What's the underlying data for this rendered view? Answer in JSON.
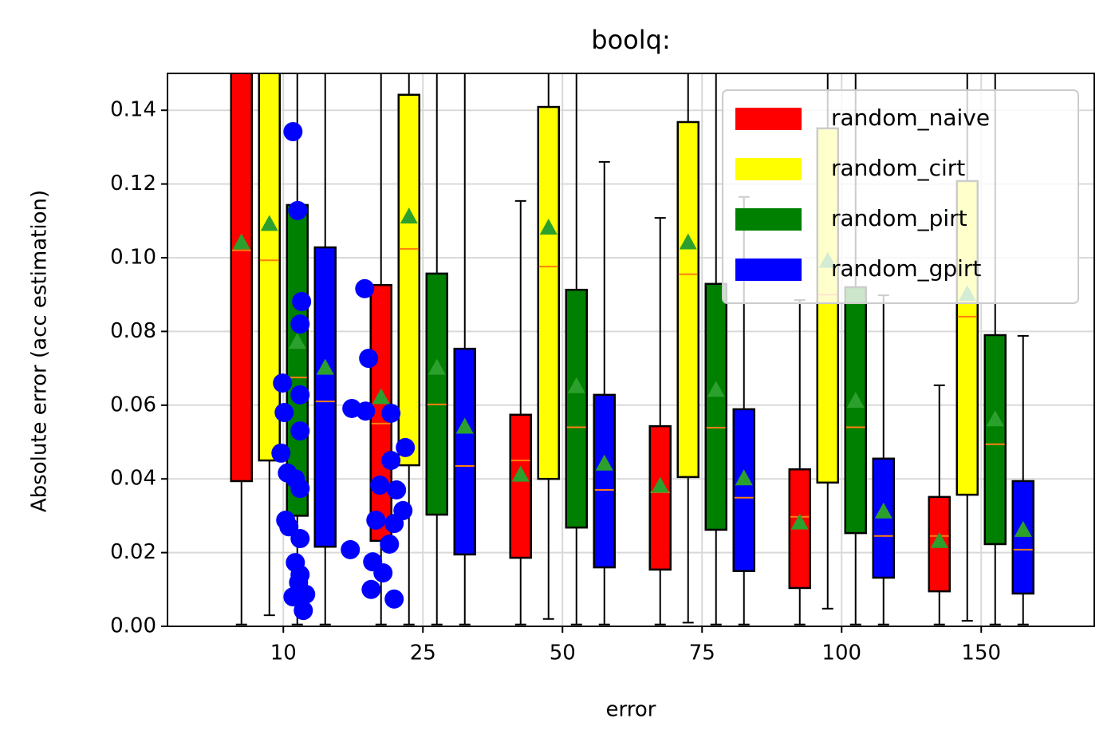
{
  "chart_data": {
    "type": "box",
    "title": "boolq:",
    "xlabel": "error",
    "ylabel": "Absolute error (acc estimation)",
    "xlim": [
      -0.83,
      5.81
    ],
    "xticks": [
      {
        "value": 0,
        "label": "10"
      },
      {
        "value": 1,
        "label": "25"
      },
      {
        "value": 2,
        "label": "50"
      },
      {
        "value": 3,
        "label": "75"
      },
      {
        "value": 4,
        "label": "100"
      },
      {
        "value": 5,
        "label": "150"
      }
    ],
    "ylim": [
      0,
      0.15
    ],
    "yticks": [
      {
        "value": 0,
        "label": "0.00"
      },
      {
        "value": 0.02,
        "label": "0.02"
      },
      {
        "value": 0.04,
        "label": "0.04"
      },
      {
        "value": 0.06,
        "label": "0.06"
      },
      {
        "value": 0.08,
        "label": "0.08"
      },
      {
        "value": 0.1,
        "label": "0.10"
      },
      {
        "value": 0.12,
        "label": "0.12"
      },
      {
        "value": 0.14,
        "label": "0.14"
      }
    ],
    "grid": true,
    "legend": "upper right",
    "median_color": "#ff7f0e",
    "mean_color": "#2ca02c",
    "series": [
      {
        "name": "random_naive",
        "color": "#ff0000",
        "whislo": [
          0.0005,
          0.0005,
          0.0005,
          0.0005,
          0.0005,
          0.0005
        ],
        "q1": [
          0.0394,
          0.0232,
          0.0186,
          0.0154,
          0.0104,
          0.0095
        ],
        "med": [
          0.102,
          0.055,
          0.045,
          0.0364,
          0.0297,
          0.0245
        ],
        "q3": [
          0.16,
          0.0926,
          0.0574,
          0.0543,
          0.0426,
          0.0351
        ],
        "whishi": [
          0.25,
          0.16,
          0.1154,
          0.1108,
          0.0885,
          0.0654
        ],
        "mean": [
          0.104,
          0.062,
          0.041,
          0.038,
          0.028,
          0.023
        ]
      },
      {
        "name": "random_cirt",
        "color": "#ffff00",
        "whislo": [
          0.003,
          0.0005,
          0.002,
          0.001,
          0.0048,
          0.0015
        ],
        "q1": [
          0.045,
          0.0437,
          0.04,
          0.0405,
          0.039,
          0.0357
        ],
        "med": [
          0.0993,
          0.1024,
          0.0976,
          0.0955,
          0.09,
          0.084
        ],
        "q3": [
          0.16,
          0.1442,
          0.1409,
          0.1368,
          0.1351,
          0.1208
        ],
        "whishi": [
          0.25,
          0.16,
          0.16,
          0.16,
          0.16,
          0.16
        ],
        "mean": [
          0.109,
          0.111,
          0.108,
          0.104,
          0.099,
          0.09
        ]
      },
      {
        "name": "random_pirt",
        "color": "#008000",
        "whislo": [
          0.0005,
          0.0005,
          0.0005,
          0.0005,
          0.0005,
          0.0005
        ],
        "q1": [
          0.03,
          0.0303,
          0.0268,
          0.0262,
          0.0253,
          0.0223
        ],
        "med": [
          0.0675,
          0.0602,
          0.054,
          0.0539,
          0.054,
          0.0494
        ],
        "q3": [
          0.1143,
          0.0957,
          0.0913,
          0.0929,
          0.092,
          0.079
        ],
        "whishi": [
          0.16,
          0.16,
          0.16,
          0.16,
          0.16,
          0.16
        ],
        "mean": [
          0.077,
          0.07,
          0.065,
          0.064,
          0.061,
          0.056
        ]
      },
      {
        "name": "random_gpirt",
        "color": "#0000ff",
        "whislo": [
          0.0005,
          0.0005,
          0.0005,
          0.0005,
          0.0005,
          0.0005
        ],
        "q1": [
          0.0216,
          0.0195,
          0.016,
          0.015,
          0.0132,
          0.0089
        ],
        "med": [
          0.061,
          0.0435,
          0.037,
          0.0349,
          0.0245,
          0.0208
        ],
        "q3": [
          0.1028,
          0.0753,
          0.0628,
          0.0589,
          0.0455,
          0.0394
        ],
        "whishi": [
          0.16,
          0.16,
          0.126,
          0.1165,
          0.0898,
          0.0788
        ],
        "mean": [
          0.07,
          0.054,
          0.044,
          0.04,
          0.031,
          0.026
        ]
      }
    ],
    "points": {
      "color": "#0000ff",
      "x": [
        0.069,
        0.103,
        0.131,
        0.12,
        -0.006,
        0.12,
        0.006,
        0.12,
        -0.017,
        0.029,
        0.086,
        0.12,
        0.017,
        0.04,
        0.12,
        0.086,
        0.109,
        0.069,
        0.143,
        0.16,
        0.12,
        0.583,
        0.611,
        0.491,
        0.589,
        0.771,
        0.874,
        0.771,
        0.691,
        0.811,
        0.857,
        0.663,
        0.794,
        0.76,
        0.48,
        0.64,
        0.714,
        0.629,
        0.794
      ],
      "y": [
        0.1342,
        0.1128,
        0.0881,
        0.082,
        0.066,
        0.0628,
        0.058,
        0.053,
        0.047,
        0.0416,
        0.04,
        0.0374,
        0.0288,
        0.027,
        0.0238,
        0.0173,
        0.0119,
        0.008,
        0.0043,
        0.0087,
        0.014,
        0.0916,
        0.0727,
        0.0591,
        0.0584,
        0.0578,
        0.0485,
        0.045,
        0.0383,
        0.037,
        0.0314,
        0.0288,
        0.0279,
        0.0223,
        0.0208,
        0.0175,
        0.0145,
        0.01,
        0.0074
      ]
    }
  }
}
